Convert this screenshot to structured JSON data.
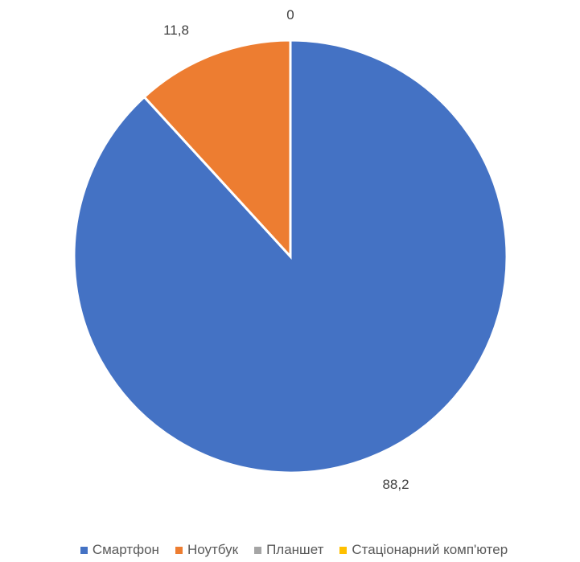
{
  "chart_data": {
    "type": "pie",
    "categories": [
      "Смартфон",
      "Ноутбук",
      "Планшет",
      "Стаціонарний комп'ютер"
    ],
    "values": [
      88.2,
      11.8,
      0,
      0
    ],
    "data_labels": [
      "88,2",
      "11,8",
      "0",
      ""
    ],
    "colors": [
      "#4472C4",
      "#ED7D31",
      "#A5A5A5",
      "#FFC000"
    ],
    "legend_position": "bottom"
  }
}
